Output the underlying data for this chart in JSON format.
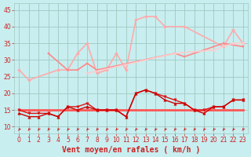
{
  "x": [
    0,
    1,
    2,
    3,
    4,
    5,
    6,
    7,
    8,
    9,
    10,
    11,
    12,
    13,
    14,
    15,
    16,
    17,
    18,
    19,
    20,
    21,
    22,
    23
  ],
  "series": [
    {
      "color": "#ff5555",
      "linewidth": 2.0,
      "marker": null,
      "markersize": 0,
      "values": [
        15,
        15,
        15,
        15,
        15,
        15,
        15,
        15,
        15,
        15,
        15,
        15,
        15,
        15,
        15,
        15,
        15,
        15,
        15,
        15,
        15,
        15,
        15,
        15
      ]
    },
    {
      "color": "#dd1111",
      "linewidth": 1.0,
      "marker": "v",
      "markersize": 2.5,
      "values": [
        15,
        14,
        14,
        14,
        13,
        16,
        16,
        17,
        15,
        15,
        15,
        13,
        20,
        21,
        20,
        19,
        18,
        17,
        15,
        15,
        16,
        16,
        18,
        18
      ]
    },
    {
      "color": "#cc0000",
      "linewidth": 1.0,
      "marker": "^",
      "markersize": 2.5,
      "values": [
        14,
        13,
        13,
        14,
        13,
        16,
        15,
        16,
        15,
        15,
        15,
        13,
        20,
        21,
        20,
        18,
        17,
        17,
        15,
        14,
        16,
        16,
        18,
        18
      ]
    },
    {
      "color": "#ffaaaa",
      "linewidth": 1.2,
      "marker": "D",
      "markersize": 2.0,
      "values": [
        27,
        24,
        null,
        null,
        27,
        27,
        32,
        35,
        26,
        27,
        32,
        27,
        42,
        43,
        43,
        40,
        null,
        40,
        null,
        null,
        null,
        34,
        39,
        35
      ]
    },
    {
      "color": "#ff8888",
      "linewidth": 1.2,
      "marker": "s",
      "markersize": 2.0,
      "values": [
        null,
        null,
        null,
        32,
        null,
        27,
        27,
        29,
        27,
        null,
        null,
        null,
        null,
        null,
        null,
        null,
        32,
        31,
        null,
        33,
        null,
        35,
        null,
        34
      ]
    },
    {
      "color": "#ffcccc",
      "linewidth": 1.2,
      "marker": "o",
      "markersize": 2.0,
      "values": [
        null,
        null,
        null,
        null,
        null,
        null,
        null,
        26,
        null,
        null,
        null,
        null,
        null,
        null,
        null,
        null,
        32,
        null,
        null,
        null,
        33,
        null,
        35,
        35
      ]
    }
  ],
  "xlabel": "Vent moyen/en rafales ( km/h )",
  "ylim": [
    8,
    47
  ],
  "yticks": [
    10,
    15,
    20,
    25,
    30,
    35,
    40,
    45
  ],
  "xticks": [
    0,
    1,
    2,
    3,
    4,
    5,
    6,
    7,
    8,
    9,
    10,
    11,
    12,
    13,
    14,
    15,
    16,
    17,
    18,
    19,
    20,
    21,
    22,
    23
  ],
  "bg_color": "#c8eef0",
  "grid_color": "#a0c8c0",
  "arrow_color": "#cc2222",
  "xlabel_color": "#cc2222",
  "tick_color": "#cc2222",
  "xlabel_fontsize": 7,
  "tick_fontsize": 5.5
}
